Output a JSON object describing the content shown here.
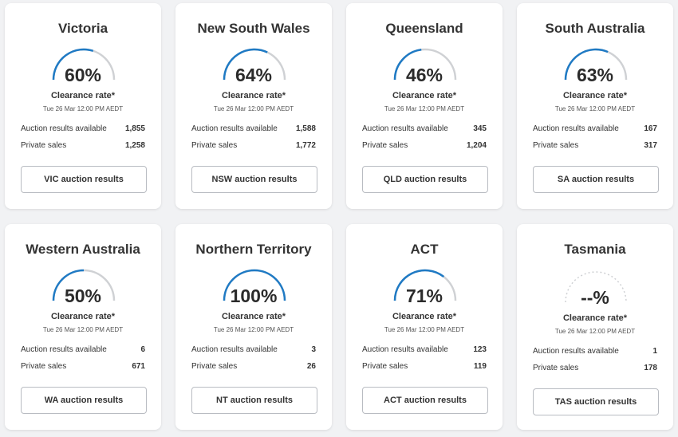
{
  "clearance_label": "Clearance rate*",
  "date": "Tue 26 Mar 12:00 PM AEDT",
  "auction_label": "Auction results available",
  "private_label": "Private sales",
  "colors": {
    "arc": "#1f7ac4",
    "track": "#cfd1d4"
  },
  "states": [
    {
      "name": "Victoria",
      "rate": 60,
      "rate_text": "60%",
      "auctions": "1,855",
      "private": "1,258",
      "button": "VIC auction results"
    },
    {
      "name": "New South Wales",
      "rate": 64,
      "rate_text": "64%",
      "auctions": "1,588",
      "private": "1,772",
      "button": "NSW auction results"
    },
    {
      "name": "Queensland",
      "rate": 46,
      "rate_text": "46%",
      "auctions": "345",
      "private": "1,204",
      "button": "QLD auction results"
    },
    {
      "name": "South Australia",
      "rate": 63,
      "rate_text": "63%",
      "auctions": "167",
      "private": "317",
      "button": "SA auction results"
    },
    {
      "name": "Western Australia",
      "rate": 50,
      "rate_text": "50%",
      "auctions": "6",
      "private": "671",
      "button": "WA auction results"
    },
    {
      "name": "Northern Territory",
      "rate": 100,
      "rate_text": "100%",
      "auctions": "3",
      "private": "26",
      "button": "NT auction results"
    },
    {
      "name": "ACT",
      "rate": 71,
      "rate_text": "71%",
      "auctions": "123",
      "private": "119",
      "button": "ACT auction results"
    },
    {
      "name": "Tasmania",
      "rate": null,
      "rate_text": "--%",
      "auctions": "1",
      "private": "178",
      "button": "TAS auction results"
    }
  ]
}
